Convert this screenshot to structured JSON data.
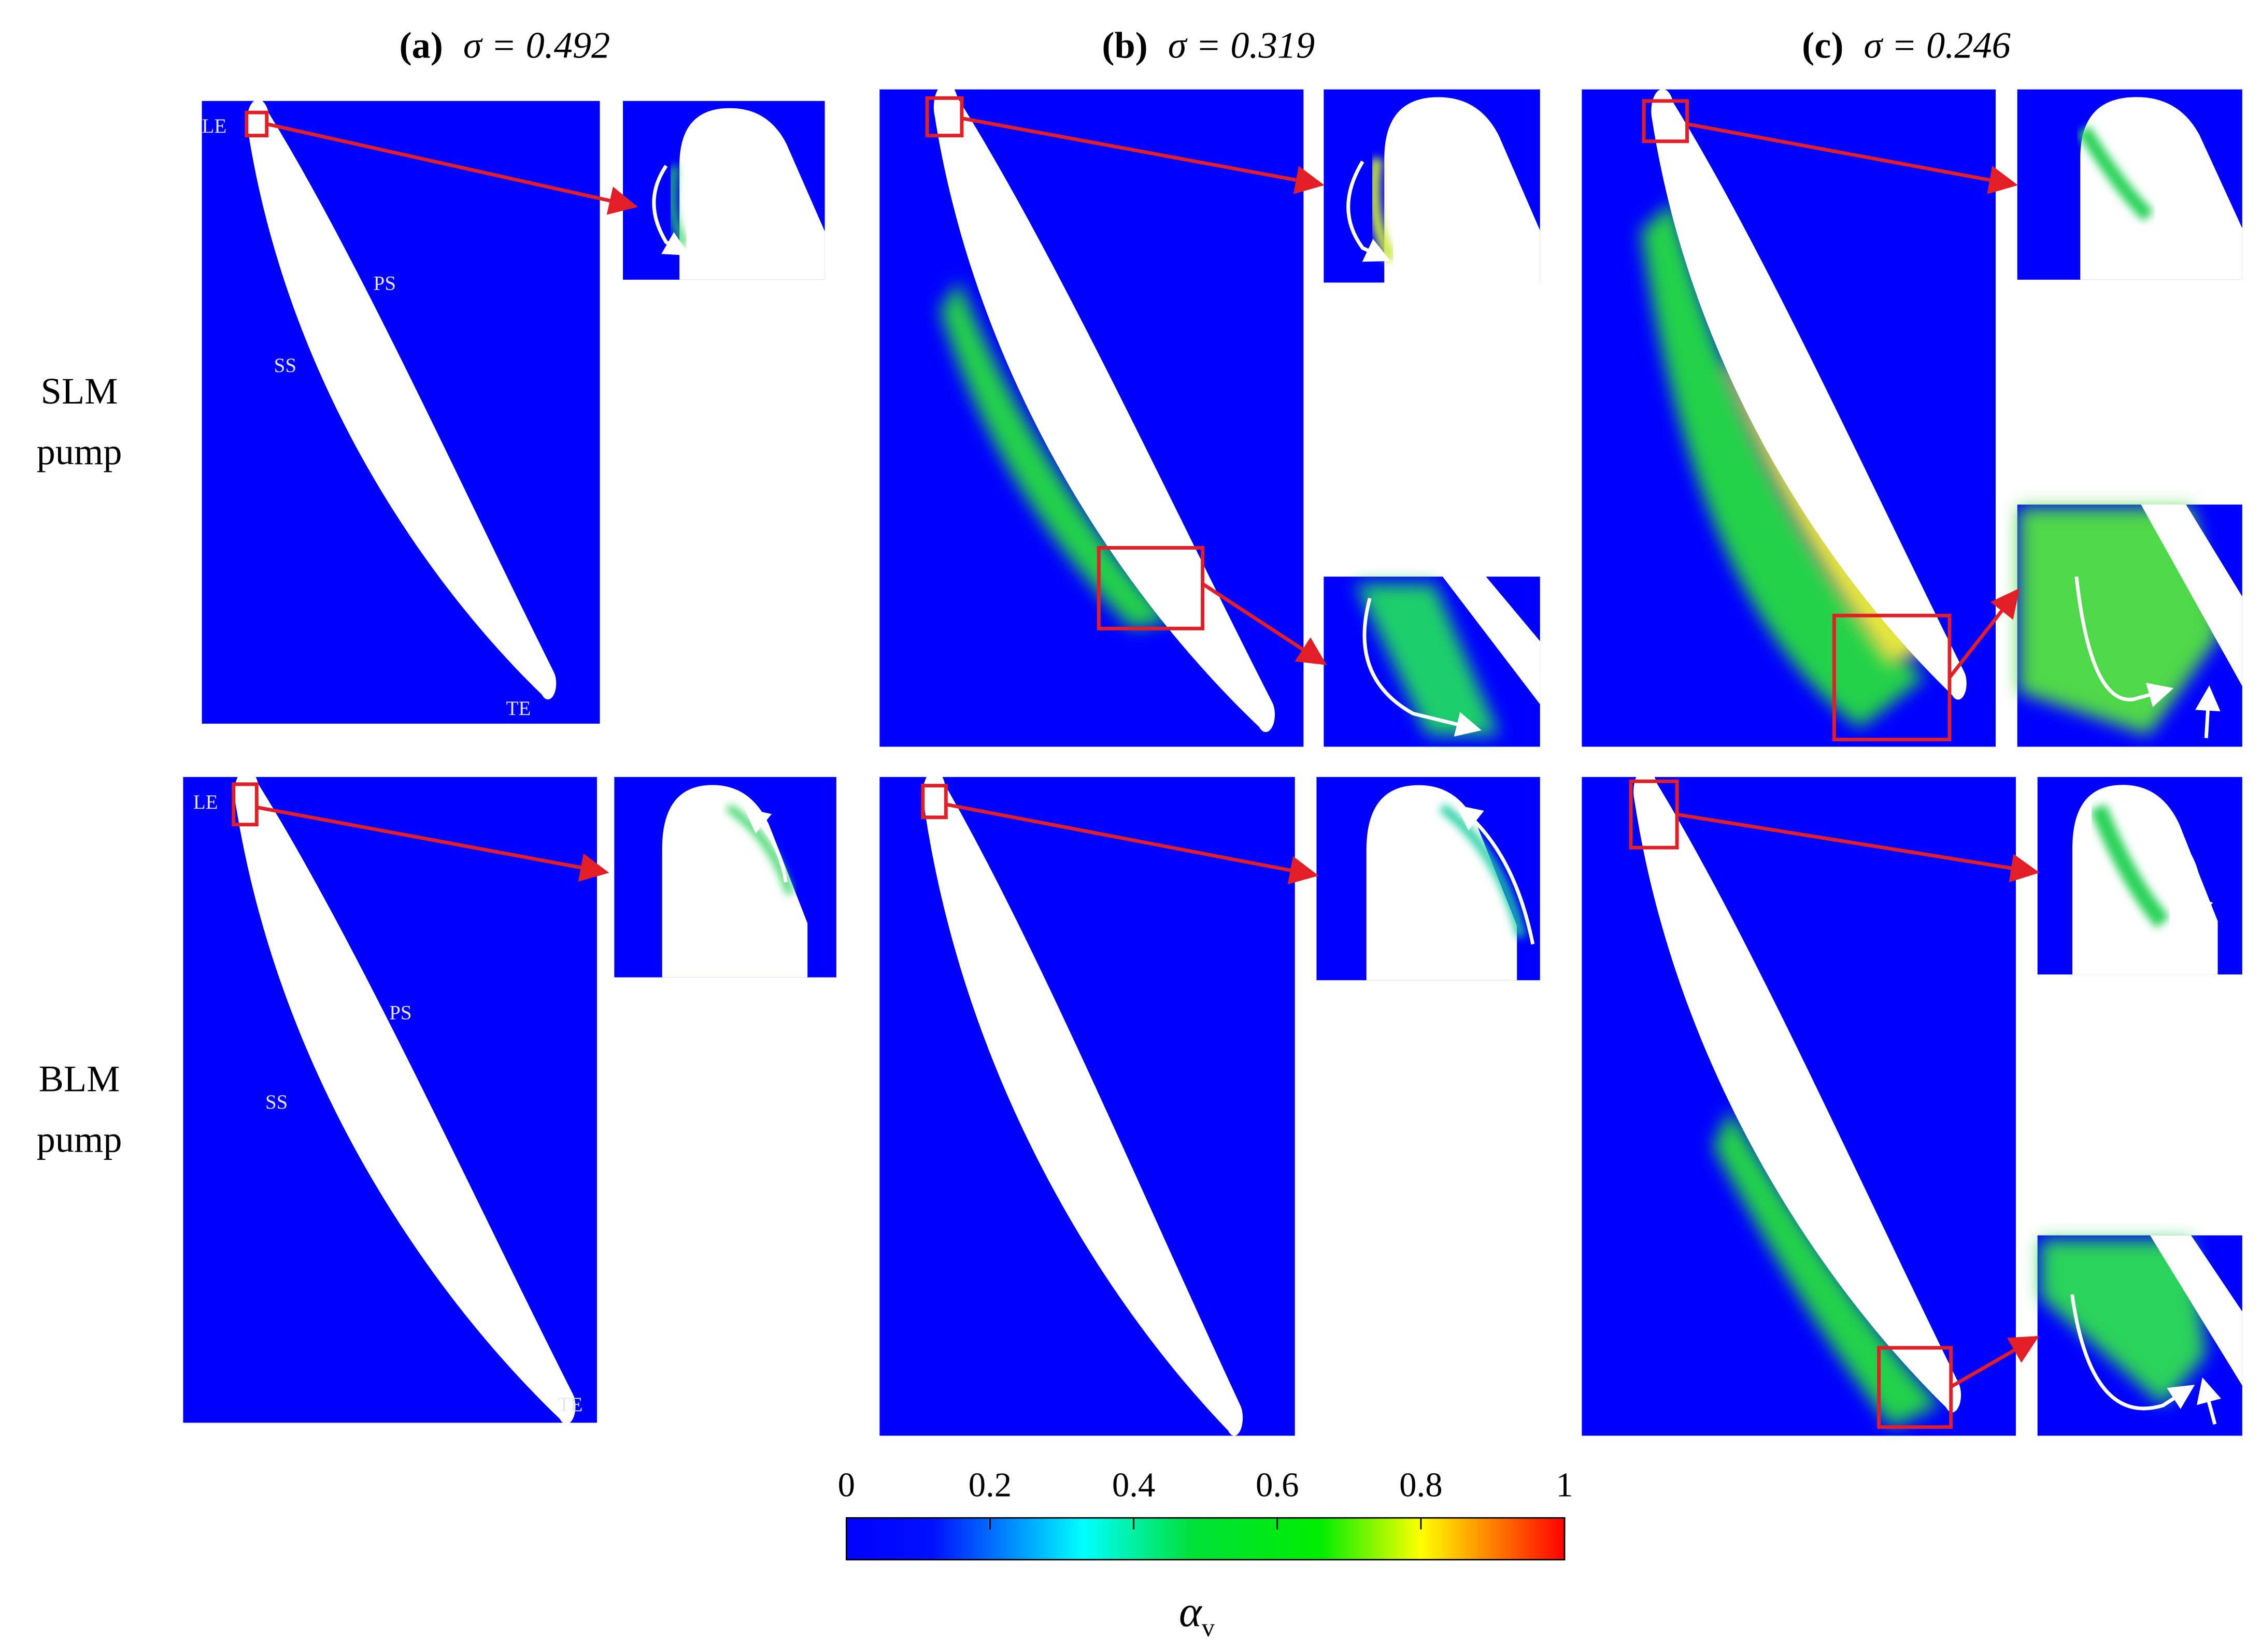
{
  "columns": [
    {
      "label": "(a)",
      "equation": "σ = 0.492"
    },
    {
      "label": "(b)",
      "equation": "σ = 0.319"
    },
    {
      "label": "(c)",
      "equation": "σ = 0.246"
    }
  ],
  "rows": [
    {
      "lines": [
        "SLM",
        "pump"
      ]
    },
    {
      "lines": [
        "BLM",
        "pump"
      ]
    }
  ],
  "panel_labels": [
    [
      "LE",
      "PS",
      "SS",
      "TE"
    ],
    [
      "LE",
      "PS",
      "SS",
      "TE"
    ]
  ],
  "colorbar": {
    "range": [
      0,
      1
    ],
    "ticks": [
      0,
      0.2,
      0.4,
      0.6,
      0.8,
      1
    ],
    "label": {
      "symbol": "α",
      "subscript": "v"
    }
  }
}
